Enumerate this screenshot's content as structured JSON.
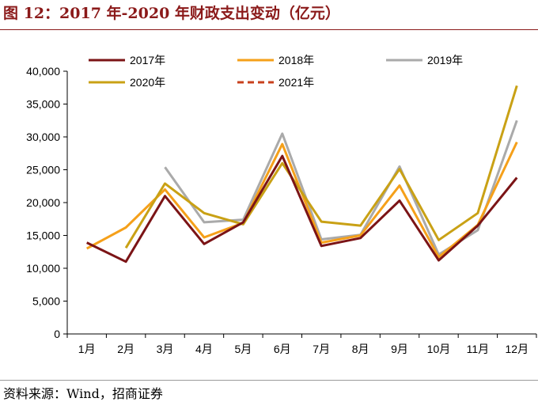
{
  "figure_title": "图 12：2017 年-2020 年财政支出变动（亿元）",
  "source": "资料来源：Wind，招商证券",
  "chart_data": {
    "type": "line",
    "title": "",
    "xlabel": "",
    "ylabel": "",
    "categories": [
      "1月",
      "2月",
      "3月",
      "4月",
      "5月",
      "6月",
      "7月",
      "8月",
      "9月",
      "10月",
      "11月",
      "12月"
    ],
    "ylim": [
      0,
      40000
    ],
    "yticks": [
      0,
      5000,
      10000,
      15000,
      20000,
      25000,
      30000,
      35000,
      40000
    ],
    "ytick_labels": [
      "0",
      "5,000",
      "10,000",
      "15,000",
      "20,000",
      "25,000",
      "30,000",
      "35,000",
      "40,000"
    ],
    "grid": false,
    "legend_position": "top",
    "series": [
      {
        "name": "2017年",
        "color": "#7b1416",
        "dashed": false,
        "values": [
          13900,
          11000,
          21000,
          13700,
          17000,
          27100,
          13400,
          14600,
          20300,
          11200,
          16500,
          23800
        ]
      },
      {
        "name": "2018年",
        "color": "#f5a01a",
        "dashed": false,
        "values": [
          13000,
          16200,
          22000,
          14700,
          16900,
          28900,
          13900,
          15000,
          22600,
          11700,
          16600,
          29200
        ]
      },
      {
        "name": "2019年",
        "color": "#aaaaaa",
        "dashed": false,
        "values": [
          null,
          null,
          25400,
          17000,
          17400,
          30500,
          14400,
          15100,
          25500,
          12100,
          15800,
          32500
        ]
      },
      {
        "name": "2020年",
        "color": "#c9a115",
        "dashed": false,
        "values": [
          null,
          13100,
          22900,
          18400,
          16700,
          26000,
          17100,
          16500,
          25100,
          14300,
          18400,
          37800
        ]
      },
      {
        "name": "2021年",
        "color": "#c8401c",
        "dashed": true,
        "values": [
          null,
          null,
          null,
          null,
          null,
          null,
          null,
          null,
          null,
          null,
          null,
          null
        ]
      }
    ]
  }
}
